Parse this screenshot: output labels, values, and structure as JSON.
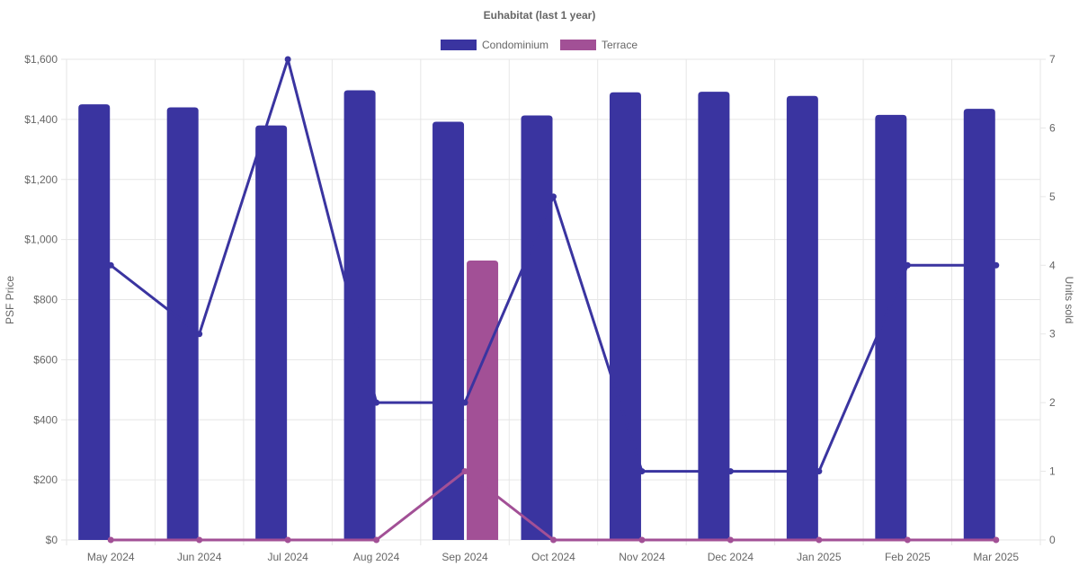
{
  "chart_data": {
    "type": "bar",
    "title": "Euhabitat (last 1 year)",
    "categories": [
      "May 2024",
      "Jun 2024",
      "Jul 2024",
      "Aug 2024",
      "Sep 2024",
      "Oct 2024",
      "Nov 2024",
      "Dec 2024",
      "Jan 2025",
      "Feb 2025",
      "Mar 2025"
    ],
    "legend": {
      "position": "top",
      "entries": [
        {
          "name": "Condominium",
          "color": "#3a34a0"
        },
        {
          "name": "Terrace",
          "color": "#a25096"
        }
      ]
    },
    "y_left": {
      "label": "PSF Price",
      "min": 0,
      "max": 1600,
      "ticks": [
        "$0",
        "$200",
        "$400",
        "$600",
        "$800",
        "$1,000",
        "$1,200",
        "$1,400",
        "$1,600"
      ]
    },
    "y_right": {
      "label": "Units sold",
      "min": 0,
      "max": 7,
      "ticks": [
        "0",
        "1",
        "2",
        "3",
        "4",
        "5",
        "6",
        "7"
      ]
    },
    "grid": true,
    "bar_series": [
      {
        "name": "Condominium",
        "color": "#3a34a0",
        "axis": "left",
        "values": [
          1450,
          1440,
          1380,
          1497,
          1392,
          1413,
          1490,
          1492,
          1478,
          1415,
          1435
        ]
      },
      {
        "name": "Terrace",
        "color": "#a25096",
        "axis": "left",
        "values": [
          null,
          null,
          null,
          null,
          930,
          null,
          null,
          null,
          null,
          null,
          null
        ]
      }
    ],
    "line_series": [
      {
        "name": "Condominium",
        "color": "#3a34a0",
        "axis": "right",
        "values": [
          4,
          3,
          7,
          2,
          2,
          5,
          1,
          1,
          1,
          4,
          4
        ]
      },
      {
        "name": "Terrace",
        "color": "#a25096",
        "axis": "right",
        "values": [
          0,
          0,
          0,
          0,
          1,
          0,
          0,
          0,
          0,
          0,
          0
        ]
      }
    ]
  }
}
